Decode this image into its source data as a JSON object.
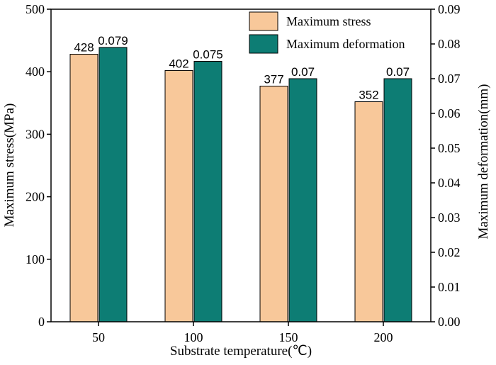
{
  "chart_data": {
    "type": "bar",
    "categories": [
      "50",
      "100",
      "150",
      "200"
    ],
    "series": [
      {
        "name": "Maximum stress",
        "axis": "left",
        "color": "#f8c89a",
        "values": [
          428,
          402,
          377,
          352
        ],
        "labels": [
          "428",
          "402",
          "377",
          "352"
        ]
      },
      {
        "name": "Maximum deformation",
        "axis": "right",
        "color": "#0d7d74",
        "values": [
          0.079,
          0.075,
          0.07,
          0.07
        ],
        "labels": [
          "0.079",
          "0.075",
          "0.07",
          "0.07"
        ]
      }
    ],
    "xlabel": "Substrate temperature(℃)",
    "ylabel": "Maximum stress(MPa)",
    "y2label": "Maximum deformation(mm)",
    "ylim": [
      0,
      500
    ],
    "y2lim": [
      0,
      0.09
    ],
    "yticks": [
      "0",
      "100",
      "200",
      "300",
      "400",
      "500"
    ],
    "y2ticks": [
      "0.00",
      "0.01",
      "0.02",
      "0.03",
      "0.04",
      "0.05",
      "0.06",
      "0.07",
      "0.08",
      "0.09"
    ],
    "grid": false,
    "legend_position": "top-right"
  }
}
